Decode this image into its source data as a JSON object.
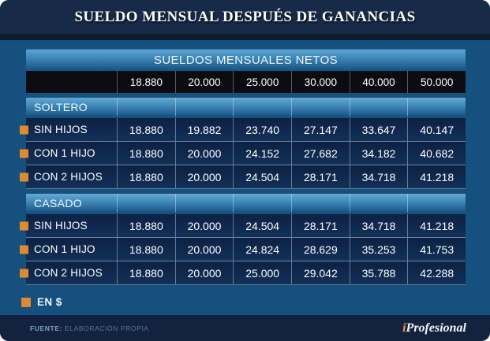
{
  "title": "SUELDO MENSUAL DESPUÉS DE GANANCIAS",
  "legend": {
    "label": "EN $"
  },
  "footer": {
    "source_label": "FUENTE:",
    "source_value": "ELABORACIÓN PROPIA",
    "brand_i": "i",
    "brand_rest": "Profesional"
  },
  "colors": {
    "accent_orange": "#DF8A30",
    "body_blue": "#15507E",
    "navy": "#172A47",
    "row_navy": "#0F2A4F",
    "header_black": "#0A0C12"
  },
  "chart_data": {
    "type": "table",
    "title": "SUELDO MENSUAL DESPUÉS DE GANANCIAS",
    "subtitle": "SUELDOS MENSUALES NETOS",
    "unit": "EN $",
    "columns": [
      "18.880",
      "20.000",
      "25.000",
      "30.000",
      "40.000",
      "50.000"
    ],
    "groups": [
      {
        "name": "SOLTERO",
        "rows": [
          {
            "label": "SIN HIJOS",
            "values": [
              "18.880",
              "19.882",
              "23.740",
              "27.147",
              "33.647",
              "40.147"
            ]
          },
          {
            "label": "CON 1 HIJO",
            "values": [
              "18.880",
              "20.000",
              "24.152",
              "27.682",
              "34.182",
              "40.682"
            ]
          },
          {
            "label": "CON 2 HIJOS",
            "values": [
              "18.880",
              "20.000",
              "24.504",
              "28.171",
              "34.718",
              "41.218"
            ]
          }
        ]
      },
      {
        "name": "CASADO",
        "rows": [
          {
            "label": "SIN HIJOS",
            "values": [
              "18.880",
              "20.000",
              "24.504",
              "28.171",
              "34.718",
              "41.218"
            ]
          },
          {
            "label": "CON 1 HIJO",
            "values": [
              "18.880",
              "20.000",
              "24.824",
              "28.629",
              "35.253",
              "41.753"
            ]
          },
          {
            "label": "CON 2 HIJOS",
            "values": [
              "18.880",
              "20.000",
              "25.000",
              "29.042",
              "35.788",
              "42.288"
            ]
          }
        ]
      }
    ],
    "source": "FUENTE: ELABORACIÓN PROPIA"
  }
}
